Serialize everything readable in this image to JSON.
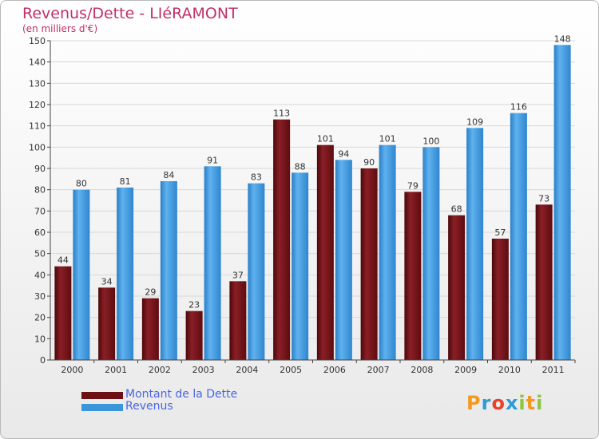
{
  "title": "Revenus/Dette - LIéRAMONT",
  "subtitle": "(en milliers d'€)",
  "logo": {
    "text": "Proxiti",
    "letters": [
      "P",
      "r",
      "o",
      "x",
      "i",
      "t",
      "i"
    ],
    "colors": [
      "#f29a1f",
      "#2e9ad6",
      "#e8412c",
      "#2e9ad6",
      "#8cc63f",
      "#f29a1f",
      "#8cc63f"
    ]
  },
  "legend": [
    {
      "label": "Montant de la Dette",
      "color": "#6e0f14"
    },
    {
      "label": "Revenus",
      "color": "#3a95db"
    }
  ],
  "chart_data": {
    "type": "bar",
    "categories": [
      "2000",
      "2001",
      "2002",
      "2003",
      "2004",
      "2005",
      "2006",
      "2007",
      "2008",
      "2009",
      "2010",
      "2011"
    ],
    "series": [
      {
        "name": "Montant de la Dette",
        "color": "#6e0f14",
        "values": [
          44,
          34,
          29,
          23,
          37,
          113,
          101,
          90,
          79,
          68,
          57,
          73
        ]
      },
      {
        "name": "Revenus",
        "color": "#3a95db",
        "values": [
          80,
          81,
          84,
          91,
          83,
          88,
          94,
          101,
          100,
          109,
          116,
          148
        ]
      }
    ],
    "ylim": [
      0,
      150
    ],
    "yticks": [
      0,
      10,
      20,
      30,
      40,
      50,
      60,
      70,
      80,
      90,
      100,
      110,
      120,
      130,
      140,
      150
    ],
    "grid": true,
    "legend_position": "bottom-left"
  }
}
